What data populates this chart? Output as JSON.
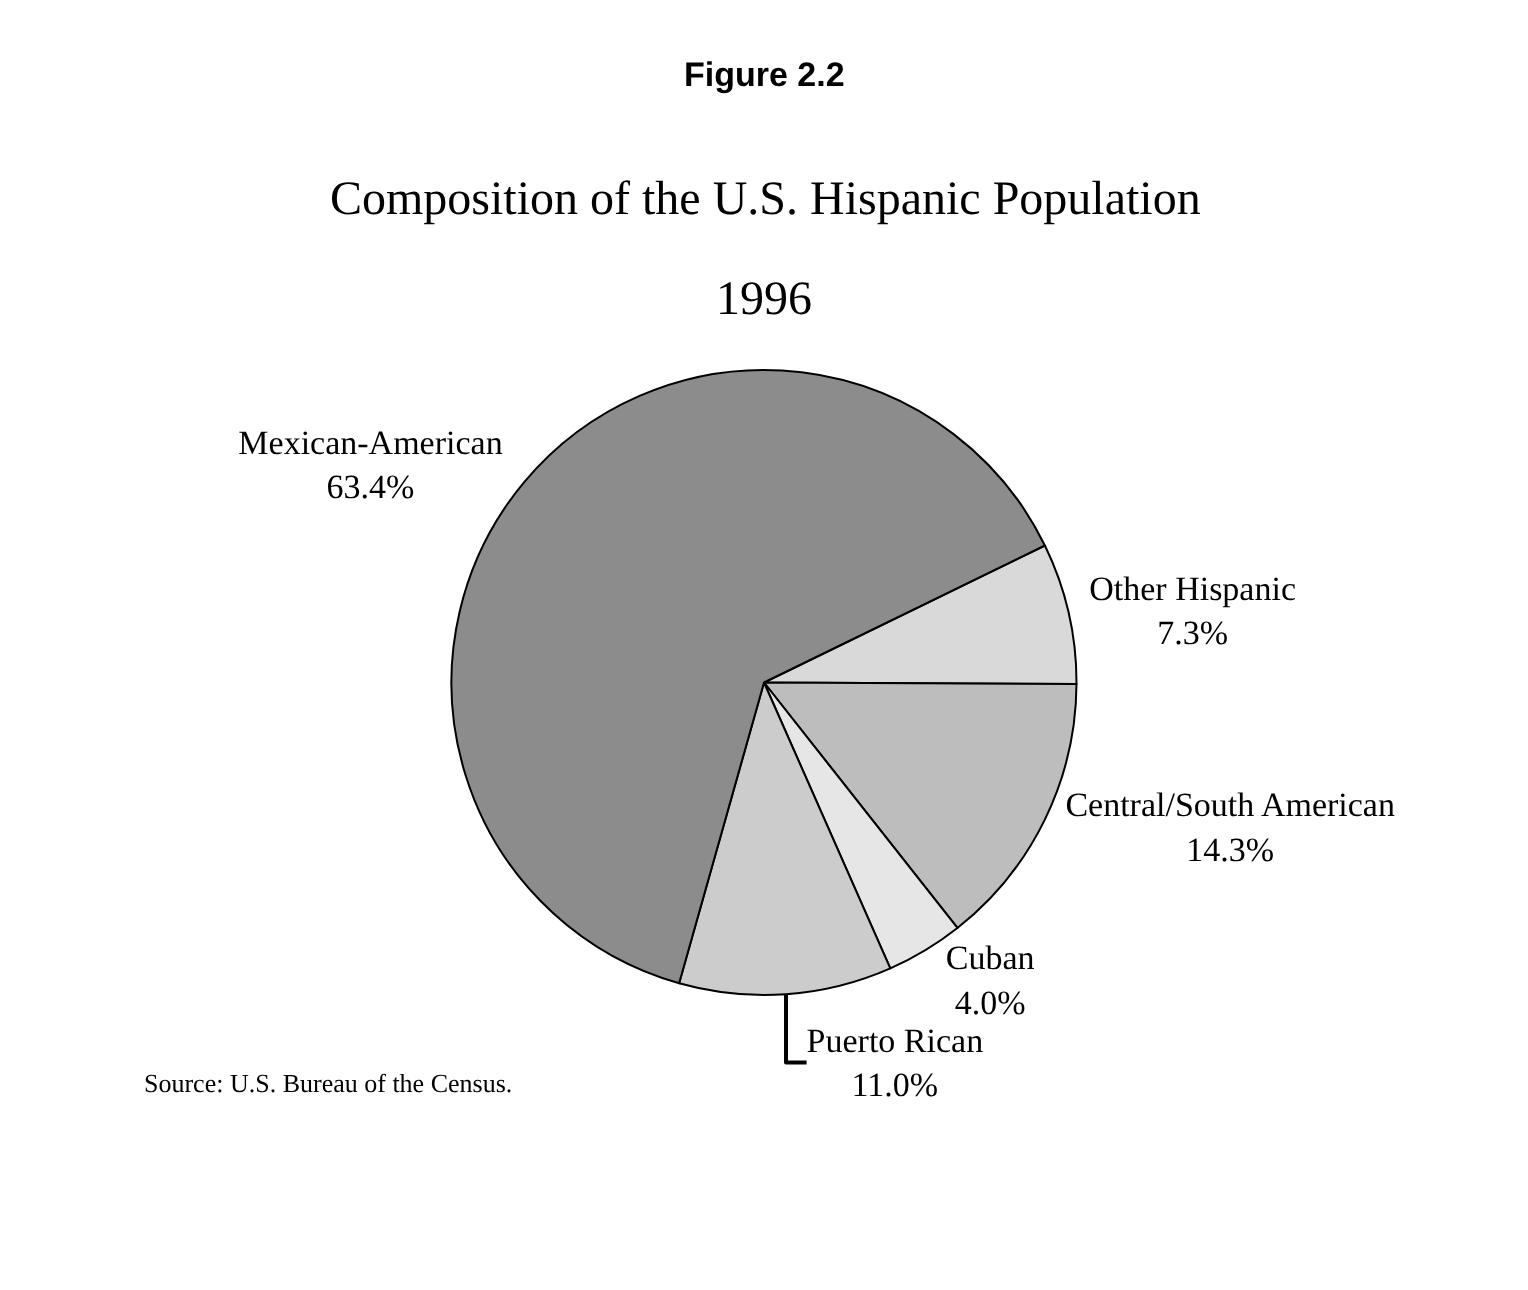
{
  "chart_data": {
    "type": "pie",
    "title": "Composition of the U.S. Hispanic Population",
    "subtitle": "1996",
    "categories": [
      "Other Hispanic",
      "Central/South American",
      "Cuban",
      "Puerto Rican",
      "Mexican-American"
    ],
    "values": [
      7.3,
      14.3,
      4.0,
      11.0,
      63.4
    ],
    "value_labels": [
      "7.3%",
      "14.3%",
      "4.0%",
      "11.0%",
      "63.4%"
    ],
    "colors": [
      "#d9d9d9",
      "#bdbdbd",
      "#e6e6e6",
      "#cccccc",
      "#8c8c8c"
    ],
    "annotations": [
      "Figure 2.2",
      "Source: U.S. Bureau of the Census."
    ]
  }
}
